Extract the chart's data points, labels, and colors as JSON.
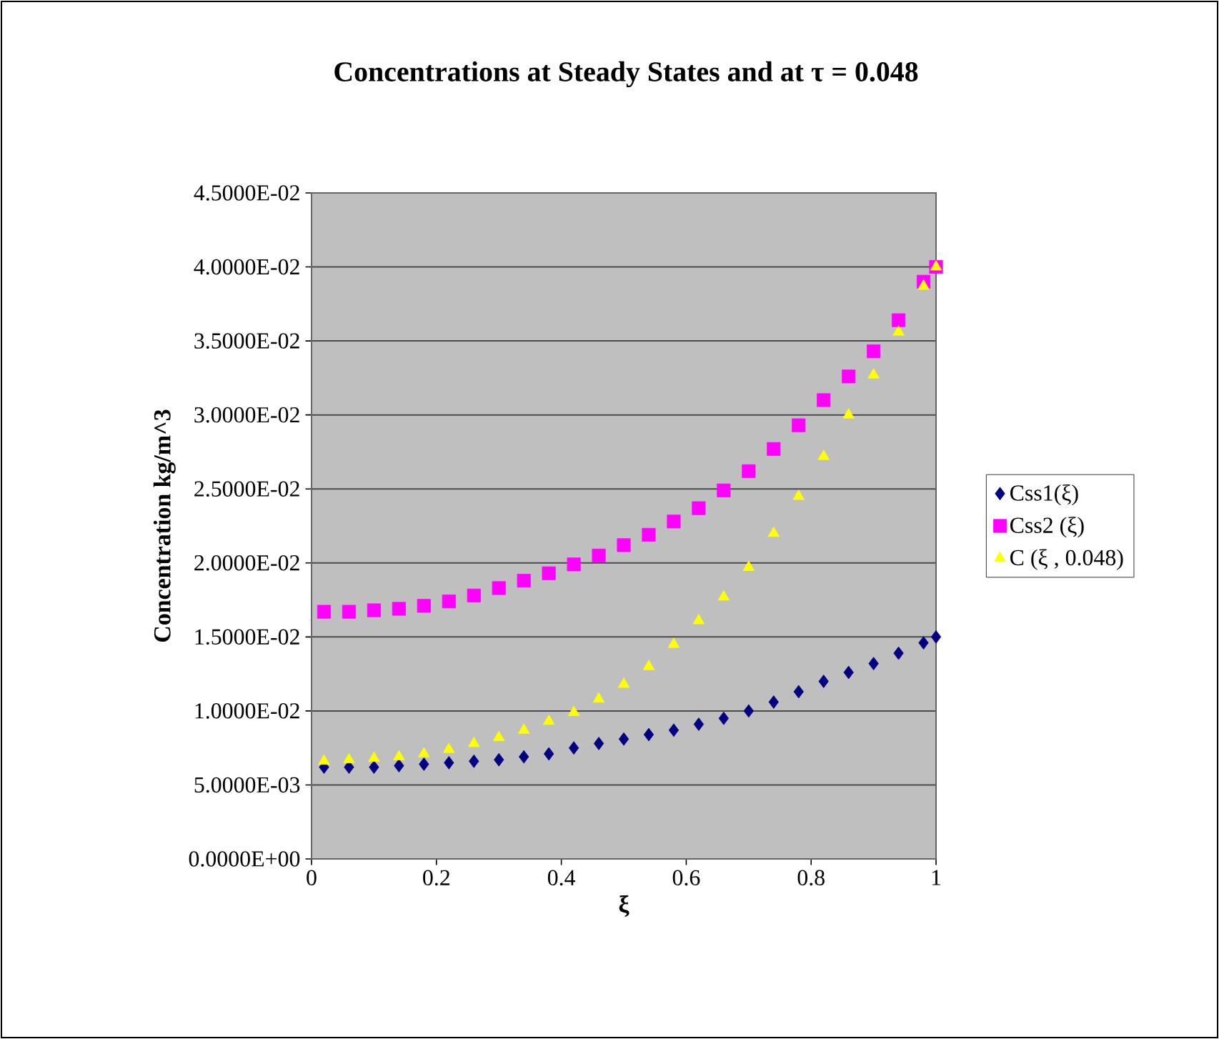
{
  "chart_data": {
    "type": "scatter",
    "title": "Concentrations at Steady States and at τ = 0.048",
    "xlabel": "ξ",
    "ylabel": "Concentration kg/m^3",
    "x": [
      0.02,
      0.06,
      0.1,
      0.14,
      0.18,
      0.22,
      0.26,
      0.3,
      0.34,
      0.38,
      0.42,
      0.46,
      0.5,
      0.54,
      0.58,
      0.62,
      0.66,
      0.7,
      0.74,
      0.78,
      0.82,
      0.86,
      0.9,
      0.94,
      0.98,
      1.0
    ],
    "series": [
      {
        "name": "Css1(ξ)",
        "color": "#000080",
        "marker": "diamond",
        "values": [
          0.0062,
          0.0062,
          0.0062,
          0.0063,
          0.0064,
          0.0065,
          0.0066,
          0.0067,
          0.0069,
          0.0071,
          0.0075,
          0.0078,
          0.0081,
          0.0084,
          0.0087,
          0.0091,
          0.0095,
          0.01,
          0.0106,
          0.0113,
          0.012,
          0.0126,
          0.0132,
          0.0139,
          0.0146,
          0.015
        ]
      },
      {
        "name": "Css2 (ξ)",
        "color": "#ff00ff",
        "marker": "square",
        "values": [
          0.0167,
          0.0167,
          0.0168,
          0.0169,
          0.0171,
          0.0174,
          0.0178,
          0.0183,
          0.0188,
          0.0193,
          0.0199,
          0.0205,
          0.0212,
          0.0219,
          0.0228,
          0.0237,
          0.0249,
          0.0262,
          0.0277,
          0.0293,
          0.031,
          0.0326,
          0.0343,
          0.0364,
          0.039,
          0.04
        ]
      },
      {
        "name": "C (ξ , 0.048)",
        "color": "#ffff00",
        "marker": "triangle",
        "values": [
          0.0066,
          0.0067,
          0.0068,
          0.0069,
          0.0071,
          0.0074,
          0.0078,
          0.0082,
          0.0087,
          0.0093,
          0.0099,
          0.0108,
          0.0118,
          0.013,
          0.0145,
          0.0161,
          0.0177,
          0.0197,
          0.022,
          0.0245,
          0.0272,
          0.03,
          0.0327,
          0.0356,
          0.0387,
          0.04
        ]
      }
    ],
    "xlim": [
      0,
      1
    ],
    "xticks": [
      0,
      0.2,
      0.4,
      0.6,
      0.8,
      1
    ],
    "ylim": [
      0,
      0.045
    ],
    "yticks": [
      {
        "value": 0,
        "label": "0.0000E+00"
      },
      {
        "value": 0.005,
        "label": "5.0000E-03"
      },
      {
        "value": 0.01,
        "label": "1.0000E-02"
      },
      {
        "value": 0.015,
        "label": "1.5000E-02"
      },
      {
        "value": 0.02,
        "label": "2.0000E-02"
      },
      {
        "value": 0.025,
        "label": "2.5000E-02"
      },
      {
        "value": 0.03,
        "label": "3.0000E-02"
      },
      {
        "value": 0.035,
        "label": "3.5000E-02"
      },
      {
        "value": 0.04,
        "label": "4.0000E-02"
      },
      {
        "value": 0.045,
        "label": "4.5000E-02"
      }
    ],
    "grid": "y",
    "legend": "right"
  }
}
